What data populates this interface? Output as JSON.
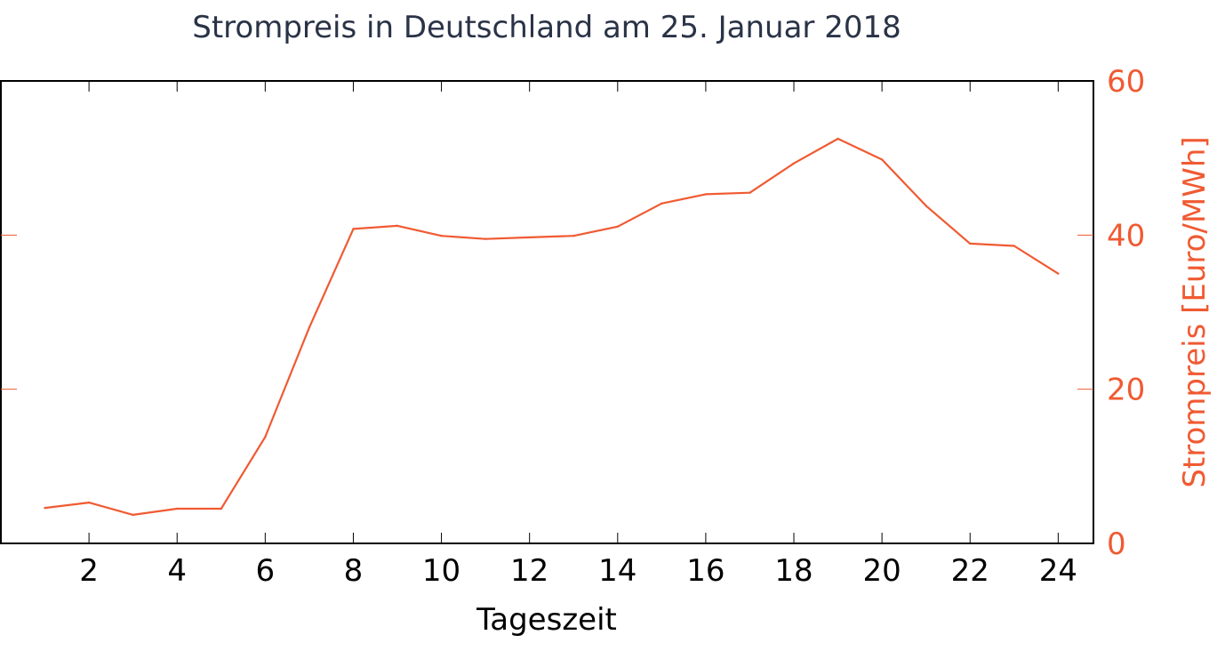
{
  "chart_data": {
    "type": "line",
    "title": "Strompreis in Deutschland am 25. Januar 2018",
    "xlabel": "Tageszeit",
    "ylabel": "Strompreis [Euro/MWh]",
    "xlim": [
      0.0,
      24.8
    ],
    "ylim": [
      0,
      60
    ],
    "x_ticks": [
      2,
      4,
      6,
      8,
      10,
      12,
      14,
      16,
      18,
      20,
      22,
      24
    ],
    "x_tick_labels": [
      "2",
      "4",
      "6",
      "8",
      "10",
      "12",
      "14",
      "16",
      "18",
      "20",
      "22",
      "24"
    ],
    "y_ticks": [
      0,
      20,
      40,
      60
    ],
    "y_tick_labels": [
      "0",
      "20",
      "40",
      "60"
    ],
    "grid": false,
    "series": [
      {
        "name": "Strompreis",
        "color": "#f05a32",
        "x": [
          1,
          2,
          3,
          4,
          5,
          6,
          7,
          8,
          9,
          10,
          11,
          12,
          13,
          14,
          15,
          16,
          17,
          18,
          19,
          20,
          21,
          22,
          23,
          24
        ],
        "values": [
          4.6,
          5.3,
          3.7,
          4.5,
          4.5,
          13.8,
          28.0,
          40.8,
          41.2,
          39.9,
          39.5,
          39.7,
          39.9,
          41.1,
          44.1,
          45.3,
          45.5,
          49.3,
          52.5,
          49.8,
          43.8,
          38.9,
          38.6,
          35.0
        ]
      }
    ],
    "colors": {
      "title": "#2a3347",
      "axis": "#000000",
      "accent": "#f05a32"
    }
  }
}
